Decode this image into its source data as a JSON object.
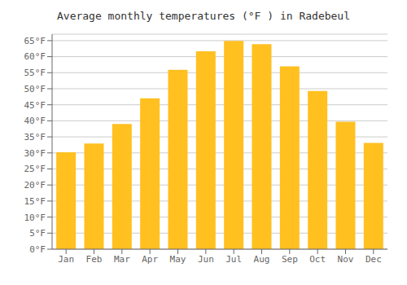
{
  "chart_data": {
    "type": "bar",
    "title": "Average monthly temperatures (°F ) in Radebeul",
    "categories": [
      "Jan",
      "Feb",
      "Mar",
      "Apr",
      "May",
      "Jun",
      "Jul",
      "Aug",
      "Sep",
      "Oct",
      "Nov",
      "Dec"
    ],
    "values": [
      30.2,
      32.9,
      39.0,
      47.0,
      55.9,
      61.7,
      64.9,
      63.9,
      57.0,
      49.3,
      39.7,
      33.1
    ],
    "color": "#FFC020",
    "ylim": [
      0,
      67
    ],
    "yticks": [
      {
        "value": 0,
        "label": "0°F"
      },
      {
        "value": 5,
        "label": "5°F"
      },
      {
        "value": 10,
        "label": "10°F"
      },
      {
        "value": 15,
        "label": "15°F"
      },
      {
        "value": 20,
        "label": "20°F"
      },
      {
        "value": 25,
        "label": "25°F"
      },
      {
        "value": 30,
        "label": "30°F"
      },
      {
        "value": 35,
        "label": "35°F"
      },
      {
        "value": 40,
        "label": "40°F"
      },
      {
        "value": 45,
        "label": "45°F"
      },
      {
        "value": 50,
        "label": "50°F"
      },
      {
        "value": 55,
        "label": "55°F"
      },
      {
        "value": 60,
        "label": "60°F"
      },
      {
        "value": 65,
        "label": "65°F"
      }
    ],
    "grid": true
  }
}
